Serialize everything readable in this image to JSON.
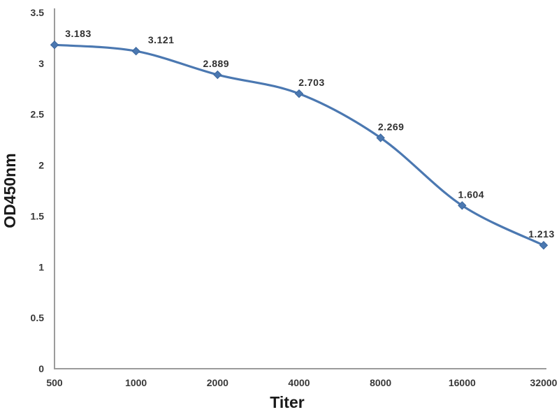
{
  "chart_data": {
    "type": "line",
    "title": "",
    "xlabel": "Titer",
    "ylabel": "OD450nm",
    "categories": [
      "500",
      "1000",
      "2000",
      "4000",
      "8000",
      "16000",
      "32000"
    ],
    "values": [
      3.183,
      3.121,
      2.889,
      2.703,
      2.269,
      1.604,
      1.213
    ],
    "data_labels": [
      "3.183",
      "3.121",
      "2.889",
      "2.703",
      "2.269",
      "1.604",
      "1.213"
    ],
    "yticks": [
      "0",
      "0.5",
      "1",
      "1.5",
      "2",
      "2.5",
      "3",
      "3.5"
    ],
    "ytick_values": [
      0,
      0.5,
      1,
      1.5,
      2,
      2.5,
      3,
      3.5
    ],
    "ylim": [
      0,
      3.5
    ],
    "grid": false,
    "legend_position": "none",
    "marker": "diamond",
    "line_smooth": true,
    "colors": {
      "background": "#ffffff",
      "series_line": "#4b78b1",
      "marker_fill": "#4b78b1",
      "marker_edge": "#3c689e",
      "axis_line": "#9b9b9b",
      "tick_text": "#383838",
      "data_label_text": "#303030",
      "axis_title_text": "#1a1a1a"
    }
  }
}
